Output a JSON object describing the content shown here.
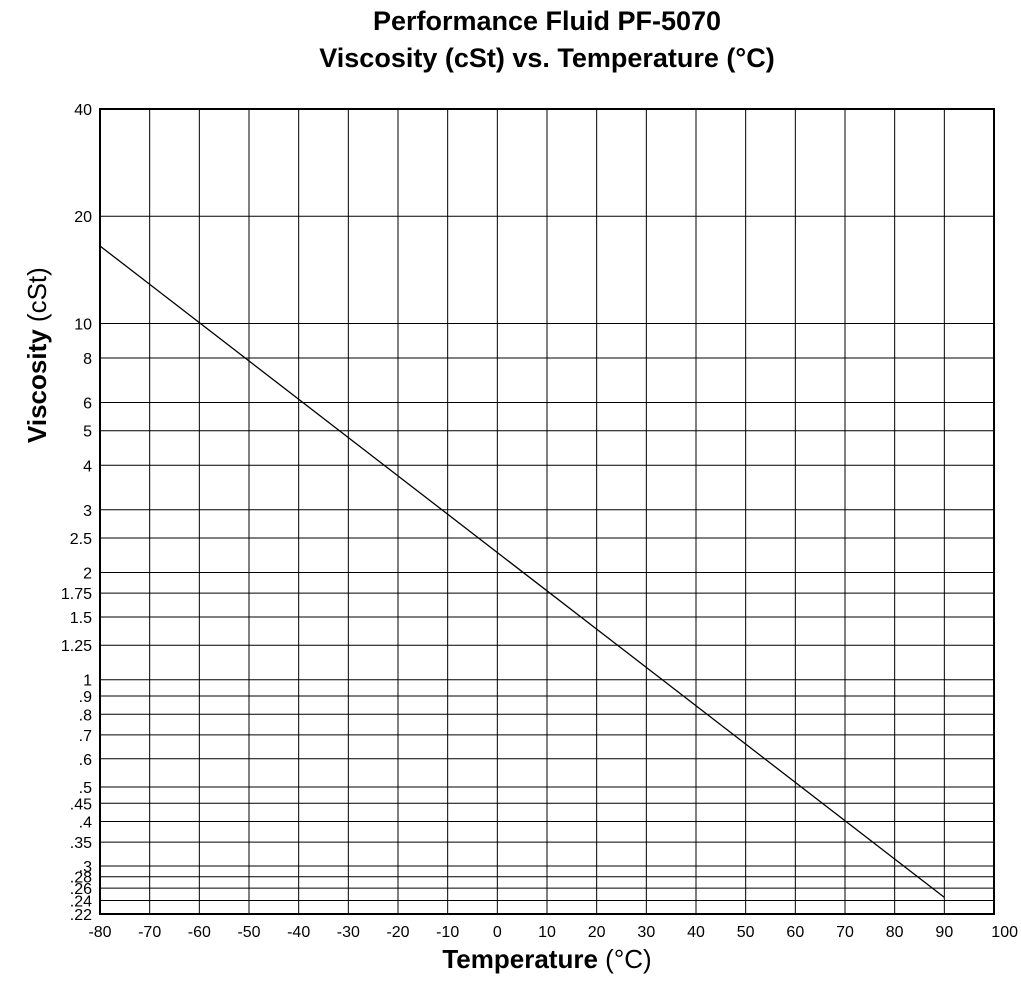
{
  "chart_data": {
    "type": "line",
    "title_line_1": "Performance Fluid PF-5070",
    "title_line_2": "Viscosity (cSt) vs. Temperature (°C)",
    "xlabel_bold": "Temperature",
    "xlabel_unit": "(°C)",
    "ylabel_bold": "Viscosity",
    "ylabel_unit": "(cSt)",
    "x_range": [
      -80,
      100
    ],
    "y_range": [
      0.22,
      40
    ],
    "y_scale": "log",
    "grid": true,
    "x_ticks": [
      {
        "v": -80,
        "label": "-80"
      },
      {
        "v": -70,
        "label": "-70"
      },
      {
        "v": -60,
        "label": "-60"
      },
      {
        "v": -50,
        "label": "-50"
      },
      {
        "v": -40,
        "label": "-40"
      },
      {
        "v": -30,
        "label": "-30"
      },
      {
        "v": -20,
        "label": "-20"
      },
      {
        "v": -10,
        "label": "-10"
      },
      {
        "v": 0,
        "label": "0"
      },
      {
        "v": 10,
        "label": "10"
      },
      {
        "v": 20,
        "label": "20"
      },
      {
        "v": 30,
        "label": "30"
      },
      {
        "v": 40,
        "label": "40"
      },
      {
        "v": 50,
        "label": "50"
      },
      {
        "v": 60,
        "label": "60"
      },
      {
        "v": 70,
        "label": "70"
      },
      {
        "v": 80,
        "label": "80"
      },
      {
        "v": 90,
        "label": "90"
      },
      {
        "v": 100,
        "label": "100"
      }
    ],
    "y_ticks": [
      {
        "v": 40,
        "label": "40"
      },
      {
        "v": 20,
        "label": "20"
      },
      {
        "v": 10,
        "label": "10"
      },
      {
        "v": 8,
        "label": "8"
      },
      {
        "v": 6,
        "label": "6"
      },
      {
        "v": 5,
        "label": "5"
      },
      {
        "v": 4,
        "label": "4"
      },
      {
        "v": 3,
        "label": "3"
      },
      {
        "v": 2.5,
        "label": "2.5"
      },
      {
        "v": 2,
        "label": "2"
      },
      {
        "v": 1.75,
        "label": "1.75"
      },
      {
        "v": 1.5,
        "label": "1.5"
      },
      {
        "v": 1.25,
        "label": "1.25"
      },
      {
        "v": 1,
        "label": "1"
      },
      {
        "v": 0.9,
        "label": ".9"
      },
      {
        "v": 0.8,
        "label": ".8"
      },
      {
        "v": 0.7,
        "label": ".7"
      },
      {
        "v": 0.6,
        "label": ".6"
      },
      {
        "v": 0.5,
        "label": ".5"
      },
      {
        "v": 0.45,
        "label": ".45"
      },
      {
        "v": 0.4,
        "label": ".4"
      },
      {
        "v": 0.35,
        "label": ".35"
      },
      {
        "v": 0.3,
        "label": ".3"
      },
      {
        "v": 0.28,
        "label": ".28"
      },
      {
        "v": 0.26,
        "label": ".26"
      },
      {
        "v": 0.24,
        "label": ".24"
      },
      {
        "v": 0.22,
        "label": ".22"
      }
    ],
    "series": [
      {
        "x": [
          -80,
          90
        ],
        "y": [
          16.5,
          0.245
        ]
      }
    ],
    "line_color": "#000000"
  }
}
